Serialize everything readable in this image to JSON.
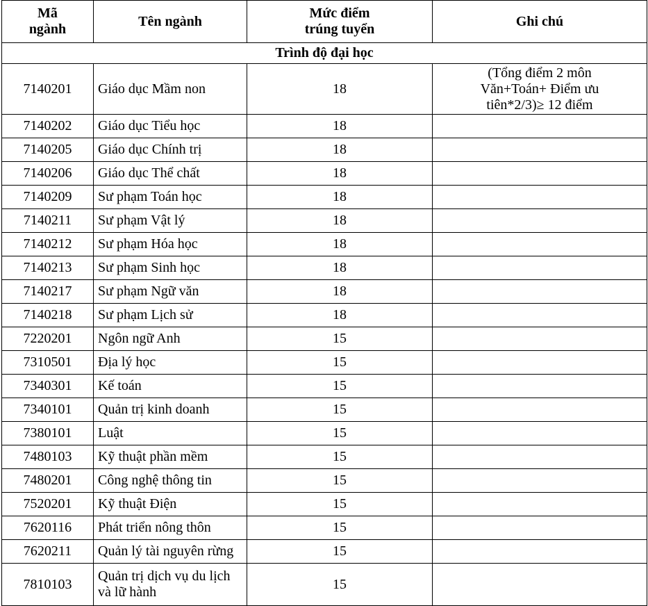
{
  "headers": {
    "code": "Mã ngành",
    "name": "Tên ngành",
    "score": "Mức điểm trúng tuyển",
    "note": "Ghi chú"
  },
  "section": "Trình độ đại học",
  "rows": [
    {
      "code": "7140201",
      "name": "Giáo dục Mầm non",
      "score": "18",
      "note": "(Tổng điểm 2 môn Văn+Toán+ Điểm ưu tiên*2/3)≥ 12 điểm"
    },
    {
      "code": "7140202",
      "name": "Giáo dục Tiểu học",
      "score": "18",
      "note": ""
    },
    {
      "code": "7140205",
      "name": "Giáo dục Chính trị",
      "score": "18",
      "note": ""
    },
    {
      "code": "7140206",
      "name": "Giáo dục Thể chất",
      "score": "18",
      "note": ""
    },
    {
      "code": "7140209",
      "name": "Sư phạm Toán học",
      "score": "18",
      "note": ""
    },
    {
      "code": "7140211",
      "name": "Sư phạm Vật lý",
      "score": "18",
      "note": ""
    },
    {
      "code": "7140212",
      "name": "Sư phạm Hóa học",
      "score": "18",
      "note": ""
    },
    {
      "code": "7140213",
      "name": "Sư phạm Sinh học",
      "score": "18",
      "note": ""
    },
    {
      "code": "7140217",
      "name": "Sư phạm Ngữ văn",
      "score": "18",
      "note": ""
    },
    {
      "code": "7140218",
      "name": "Sư phạm Lịch sử",
      "score": "18",
      "note": ""
    },
    {
      "code": "7220201",
      "name": "Ngôn ngữ Anh",
      "score": "15",
      "note": ""
    },
    {
      "code": "7310501",
      "name": "Địa lý học",
      "score": "15",
      "note": ""
    },
    {
      "code": "7340301",
      "name": "Kế toán",
      "score": "15",
      "note": ""
    },
    {
      "code": "7340101",
      "name": "Quản trị kinh doanh",
      "score": "15",
      "note": ""
    },
    {
      "code": "7380101",
      "name": "Luật",
      "score": "15",
      "note": ""
    },
    {
      "code": "7480103",
      "name": "Kỹ thuật phần mềm",
      "score": "15",
      "note": ""
    },
    {
      "code": "7480201",
      "name": "Công nghệ thông tin",
      "score": "15",
      "note": ""
    },
    {
      "code": "7520201",
      "name": "Kỹ thuật Điện",
      "score": "15",
      "note": ""
    },
    {
      "code": "7620116",
      "name": "Phát triển nông thôn",
      "score": "15",
      "note": ""
    },
    {
      "code": "7620211",
      "name": "Quản lý tài nguyên rừng",
      "score": "15",
      "note": ""
    },
    {
      "code": "7810103",
      "name": "Quản trị dịch vụ du lịch và lữ hành",
      "score": "15",
      "note": ""
    }
  ]
}
